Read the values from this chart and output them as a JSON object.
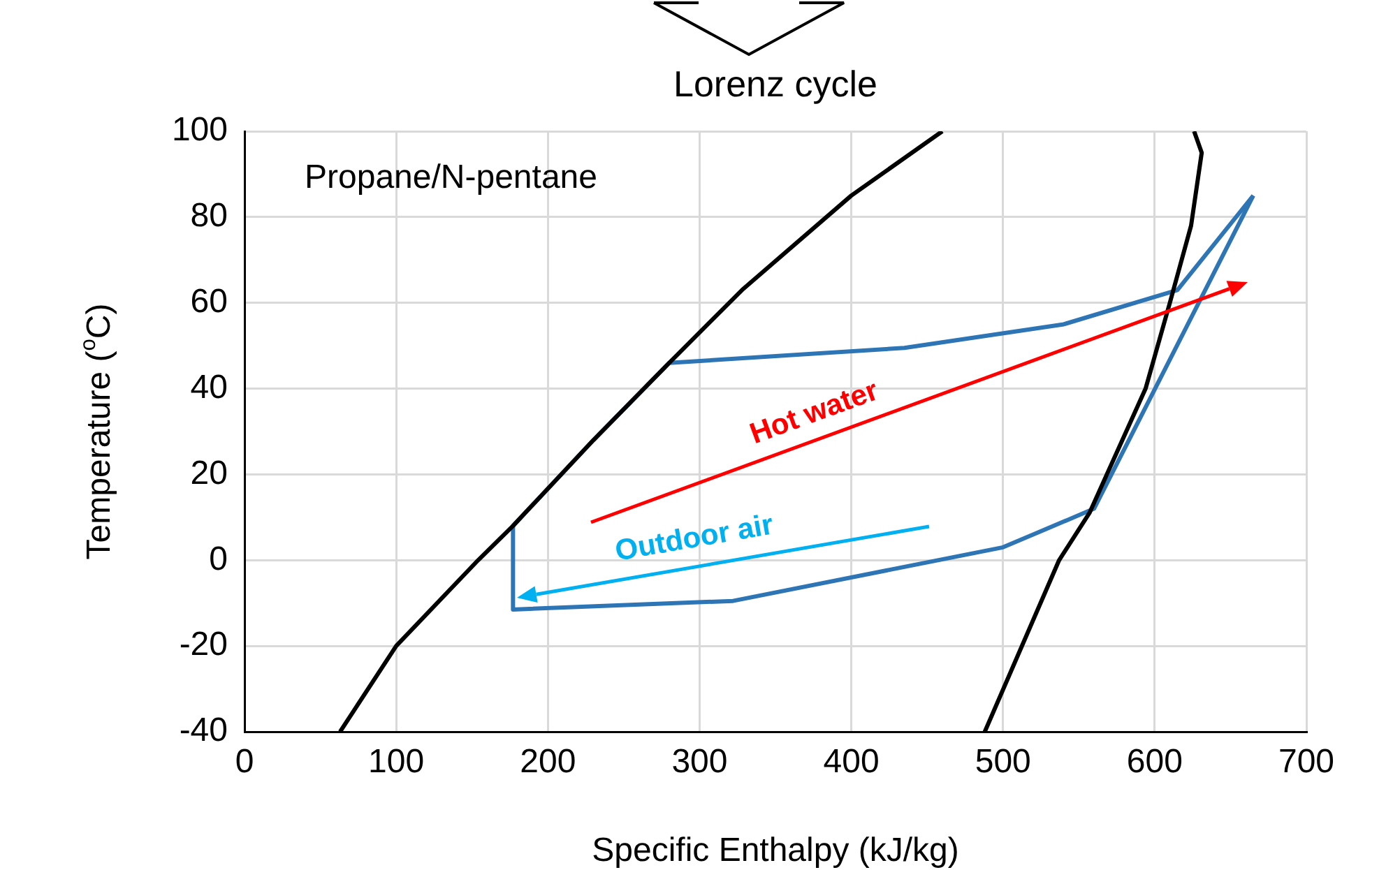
{
  "chart_data": {
    "type": "line",
    "title": "Lorenz cycle",
    "xlabel": "Specific Enthalpy (kJ/kg)",
    "ylabel": "Temperature ($^{o}$C)",
    "annotations": [
      "Propane/N-pentane",
      "Hot water",
      "Outdoor air"
    ],
    "xlim": [
      0,
      700
    ],
    "xticks": [
      0,
      100,
      200,
      300,
      400,
      500,
      600,
      700
    ],
    "ylim": [
      -40,
      100
    ],
    "yticks": [
      -40,
      -20,
      0,
      20,
      40,
      60,
      80,
      100
    ],
    "grid": true,
    "legend": false,
    "marker": "none",
    "line_style": "solid",
    "series": [
      {
        "color": "#000000",
        "x": [
          63,
          100,
          154,
          177,
          230,
          280,
          328,
          400,
          460
        ],
        "values": [
          -40,
          -20,
          0,
          8,
          28,
          46,
          63,
          85,
          100
        ]
      },
      {
        "color": "#000000",
        "x": [
          488,
          537,
          557,
          594,
          610,
          624,
          631,
          626
        ],
        "values": [
          -40,
          0,
          11,
          40,
          60,
          78,
          95,
          100
        ]
      },
      {
        "color": "#2e75b6",
        "x": [
          177,
          177,
          322,
          500,
          560,
          665
        ],
        "values": [
          8,
          -11.5,
          -9.5,
          3,
          12,
          85
        ]
      },
      {
        "color": "#2e75b6",
        "x": [
          177,
          230,
          280,
          435,
          540,
          615,
          665
        ],
        "values": [
          8,
          28,
          46,
          49.5,
          55,
          63,
          85
        ]
      }
    ]
  }
}
